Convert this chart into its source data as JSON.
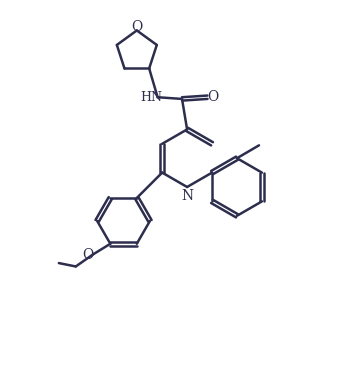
{
  "bg_color": "#ffffff",
  "line_color": "#2d2d4e",
  "line_width": 1.8,
  "font_size": 9,
  "figsize": [
    3.52,
    3.74
  ],
  "dpi": 100,
  "xlim": [
    0,
    10
  ],
  "ylim": [
    -1,
    10
  ]
}
